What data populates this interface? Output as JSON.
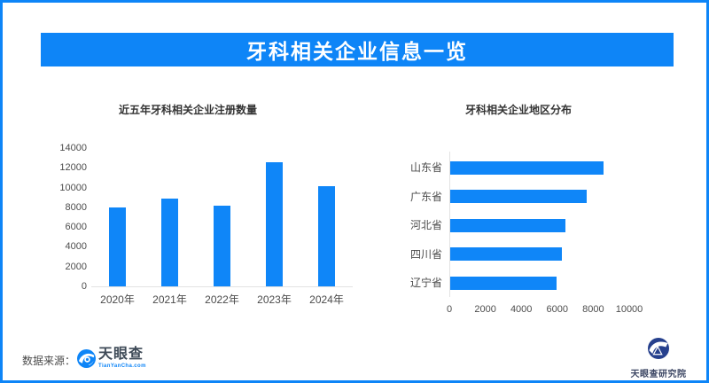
{
  "banner": {
    "title": "牙科相关企业信息一览"
  },
  "chart_data": [
    {
      "type": "bar",
      "orientation": "vertical",
      "title": "近五年牙科相关企业注册数量",
      "categories": [
        "2020年",
        "2021年",
        "2022年",
        "2023年",
        "2024年"
      ],
      "values": [
        8000,
        8900,
        8150,
        12600,
        10150
      ],
      "xlabel": "",
      "ylabel": "",
      "ylim": [
        0,
        14000
      ],
      "ytick_step": 2000,
      "grid": false,
      "legend": "none",
      "bar_color": "#0f86f8"
    },
    {
      "type": "bar",
      "orientation": "horizontal",
      "title": "牙科相关企业地区分布",
      "categories": [
        "山东省",
        "广东省",
        "河北省",
        "四川省",
        "辽宁省"
      ],
      "values": [
        8500,
        7600,
        6400,
        6200,
        5900
      ],
      "xlabel": "",
      "ylabel": "",
      "xlim": [
        0,
        10000
      ],
      "xtick_step": 2000,
      "grid": false,
      "legend": "none",
      "bar_color": "#0f86f8"
    }
  ],
  "footer": {
    "source_label": "数据来源：",
    "tianyancha_logo": {
      "icon": "tianyancha-eye-icon",
      "name": "天眼查",
      "domain": "TianYanCha.com"
    },
    "research_logo": {
      "icon": "tianyancha-research-icon",
      "name": "天眼查研究院"
    }
  },
  "colors": {
    "primary_blue": "#0e85f7",
    "bar_blue": "#0f86f8",
    "research_navy": "#26408d"
  }
}
